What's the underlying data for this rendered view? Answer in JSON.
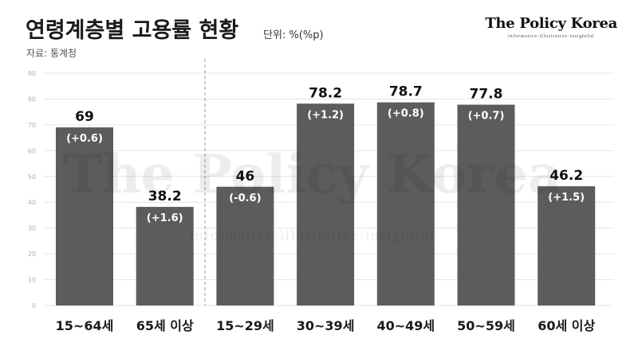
{
  "header": {
    "title": "연령계층별 고용률 현황",
    "unit": "단위: %(%p)",
    "source": "자료: 통계청"
  },
  "brand": {
    "name": "The Policy Korea",
    "tagline": "informative·illustrative·insightful"
  },
  "colors": {
    "bar": "#5c5c5c",
    "grid": "#e6e6e6",
    "divider": "#9a9a9a"
  },
  "chart_data": {
    "type": "bar",
    "categories": [
      "15~64세",
      "65세 이상",
      "15~29세",
      "30~39세",
      "40~49세",
      "50~59세",
      "60세 이상"
    ],
    "values": [
      69,
      38.2,
      46,
      78.2,
      78.7,
      77.8,
      46.2
    ],
    "value_labels": [
      "69",
      "38.2",
      "46",
      "78.2",
      "78.7",
      "77.8",
      "46.2"
    ],
    "change_labels": [
      "(+0.6)",
      "(+1.6)",
      "(-0.6)",
      "(+1.2)",
      "(+0.8)",
      "(+0.7)",
      "(+1.5)"
    ],
    "ylim": [
      0,
      90
    ],
    "yticks": [
      0,
      10,
      20,
      30,
      40,
      50,
      60,
      70,
      80,
      90
    ],
    "grid": true,
    "divider_after_category": "65세 이상"
  }
}
